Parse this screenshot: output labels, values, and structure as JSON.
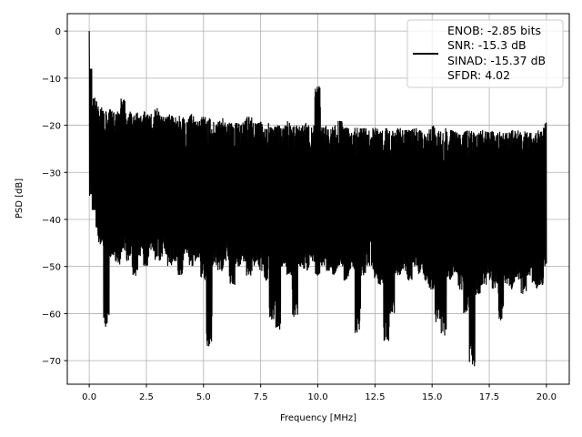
{
  "chart_data": {
    "type": "line",
    "title": "",
    "xlabel": "Frequency [MHz]",
    "ylabel": "PSD [dB]",
    "xlim": [
      -0.96,
      21.0
    ],
    "ylim": [
      -75.0,
      3.7
    ],
    "grid": true,
    "xticks": [
      0,
      2.5,
      5,
      7.5,
      10,
      12.5,
      15,
      17.5,
      20
    ],
    "xtick_labels": [
      "0.0",
      "2.5",
      "5.0",
      "7.5",
      "10.0",
      "12.5",
      "15.0",
      "17.5",
      "20.0"
    ],
    "yticks": [
      0,
      -10,
      -20,
      -30,
      -40,
      -50,
      -60,
      -70
    ],
    "ytick_labels": [
      "0",
      "−10",
      "−20",
      "−30",
      "−40",
      "−50",
      "−60",
      "−70"
    ],
    "legend": {
      "placement": "top-right",
      "entries": [
        "ENOB: -2.85 bits",
        "SNR: -15.3 dB",
        "SINAD: -15.37 dB",
        "SFDR: 4.02"
      ]
    },
    "series_color": "#000000",
    "envelope_step_mhz": 0.25,
    "envelope_max": [
      0,
      -14,
      -16,
      -17,
      -16.5,
      -17,
      -14.3,
      -17,
      -17,
      -18,
      -17,
      -17.5,
      -16,
      -18,
      -17.5,
      -18,
      -18,
      -18.5,
      -17.5,
      -19,
      -18,
      -18.5,
      -19,
      -18.5,
      -19,
      -19,
      -19.5,
      -19,
      -18,
      -19.5,
      -19,
      -19.5,
      -20,
      -19.5,
      -20,
      -19,
      -20,
      -20,
      -19.5,
      -20,
      -11.6,
      -20,
      -20.5,
      -20,
      -19,
      -20.5,
      -21,
      -20,
      -20.5,
      -21,
      -20.5,
      -21,
      -20.5,
      -21,
      -20.5,
      -21,
      -21,
      -20.5,
      -21,
      -21.5,
      -20,
      -21,
      -20.5,
      -21,
      -21,
      -21.5,
      -21,
      -21,
      -21.5,
      -21,
      -21,
      -21,
      -21,
      -21.5,
      -21,
      -21,
      -21,
      -21.5,
      -21,
      -21,
      -19
    ],
    "envelope_min": [
      -35,
      -42,
      -46,
      -63.2,
      -48,
      -50,
      -47,
      -49,
      -52,
      -48,
      -50,
      -47,
      -49,
      -48,
      -50,
      -49,
      -52,
      -48,
      -50,
      -49,
      -53,
      -67.5,
      -50,
      -51,
      -49,
      -54,
      -50,
      -49,
      -52,
      -50,
      -51,
      -53,
      -62,
      -63.4,
      -50,
      -52,
      -61,
      -50,
      -51,
      -49,
      -52,
      -50,
      -51,
      -52,
      -50,
      -53,
      -51,
      -64.2,
      -52,
      -50,
      -53,
      -54,
      -66,
      -60,
      -52,
      -51,
      -53,
      -50,
      -52,
      -54,
      -55,
      -62,
      -65,
      -53,
      -52,
      -55,
      -60,
      -71.4,
      -56,
      -54,
      -53,
      -55,
      -61.5,
      -54,
      -55,
      -53,
      -56,
      -52,
      -55,
      -54,
      -50
    ]
  }
}
